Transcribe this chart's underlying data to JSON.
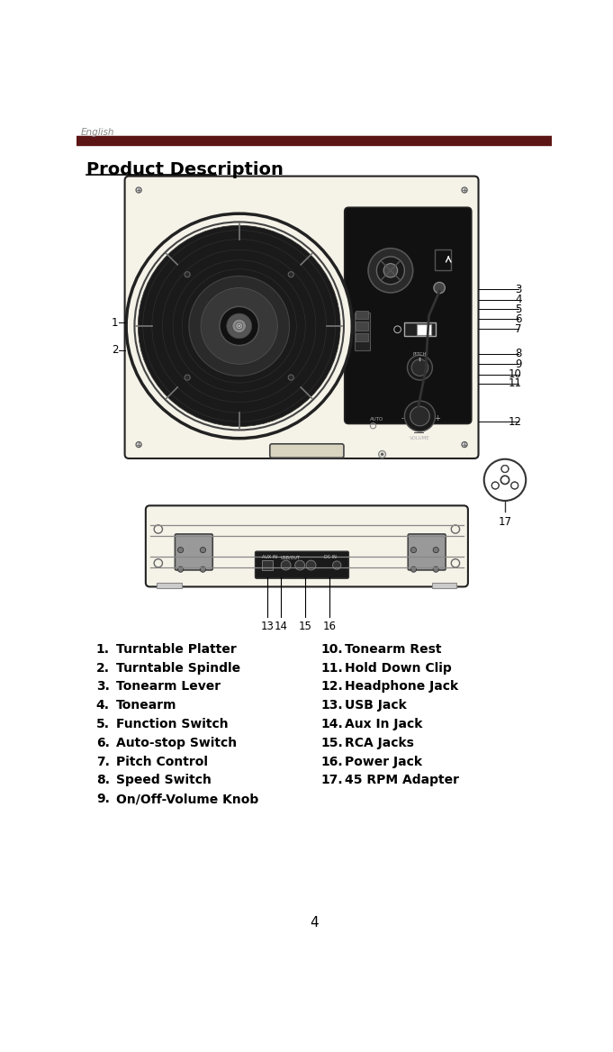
{
  "page_label": "English",
  "title": "Product Description",
  "header_line_color": "#6B1A1A",
  "header_bar_color": "#5C1515",
  "bg_color": "#FFFFFF",
  "case_color": "#F5F2E8",
  "case_edge": "#222222",
  "black_panel": "#111111",
  "items_col1": [
    [
      "1.",
      "Turntable Platter"
    ],
    [
      "2.",
      "Turntable Spindle"
    ],
    [
      "3.",
      "Tonearm Lever"
    ],
    [
      "4.",
      "Tonearm"
    ],
    [
      "5.",
      "Function Switch"
    ],
    [
      "6.",
      "Auto-stop Switch"
    ],
    [
      "7.",
      "Pitch Control"
    ],
    [
      "8.",
      "Speed Switch"
    ],
    [
      "9.",
      "On/Off-Volume Knob"
    ]
  ],
  "items_col2": [
    [
      "10.",
      "Tonearm Rest"
    ],
    [
      "11.",
      "Hold Down Clip"
    ],
    [
      "12.",
      "Headphone Jack"
    ],
    [
      "13.",
      "USB Jack"
    ],
    [
      "14.",
      "Aux In Jack"
    ],
    [
      "15.",
      "RCA Jacks"
    ],
    [
      "16.",
      "Power Jack"
    ],
    [
      "17.",
      "45 RPM Adapter"
    ]
  ],
  "page_number": "4"
}
